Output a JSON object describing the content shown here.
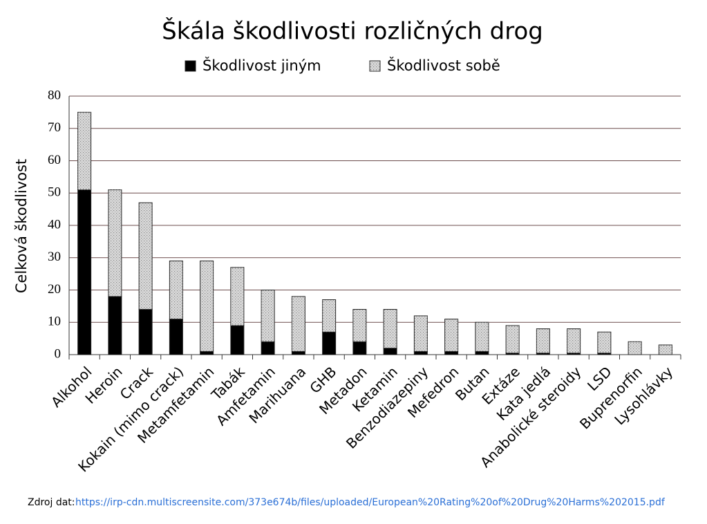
{
  "chart_data": {
    "type": "stacked_bar",
    "title": "Škála škodlivosti rozličných drog",
    "y_label": "Celková škodlivost",
    "categories": [
      "Alkohol",
      "Heroin",
      "Crack",
      "Kokain (mimo crack)",
      "Metamfetamin",
      "Tabák",
      "Amfetamin",
      "Marihuana",
      "GHB",
      "Metadon",
      "Ketamin",
      "Benzodiazepiny",
      "Mefedron",
      "Butan",
      "Extáze",
      "Kata jedlá",
      "Anabolické steroidy",
      "LSD",
      "Buprenorfin",
      "Lysohlávky"
    ],
    "series": [
      {
        "name": "Škodlivost jiným",
        "color": "#000000",
        "values": [
          51,
          18,
          14,
          11,
          1,
          9,
          4,
          1,
          7,
          4,
          2,
          1,
          1,
          1,
          0.5,
          0.5,
          0.5,
          0.5,
          0,
          0
        ]
      },
      {
        "name": "Škodlivost sobě",
        "color": "#d8d8d8",
        "values": [
          24,
          33,
          33,
          18,
          28,
          18,
          16,
          17,
          10,
          10,
          12,
          11,
          10,
          9,
          8.5,
          7.5,
          7.5,
          6.5,
          4,
          3
        ]
      }
    ],
    "ylim": [
      0,
      80
    ],
    "yticks": [
      0,
      10,
      20,
      30,
      40,
      50,
      60,
      70,
      80
    ],
    "grid": true
  },
  "footer": {
    "label": "Zdroj dat:",
    "url": "https://irp-cdn.multiscreensite.com/373e674b/files/uploaded/European%20Rating%20of%20Drug%20Harms%202015.pdf"
  }
}
